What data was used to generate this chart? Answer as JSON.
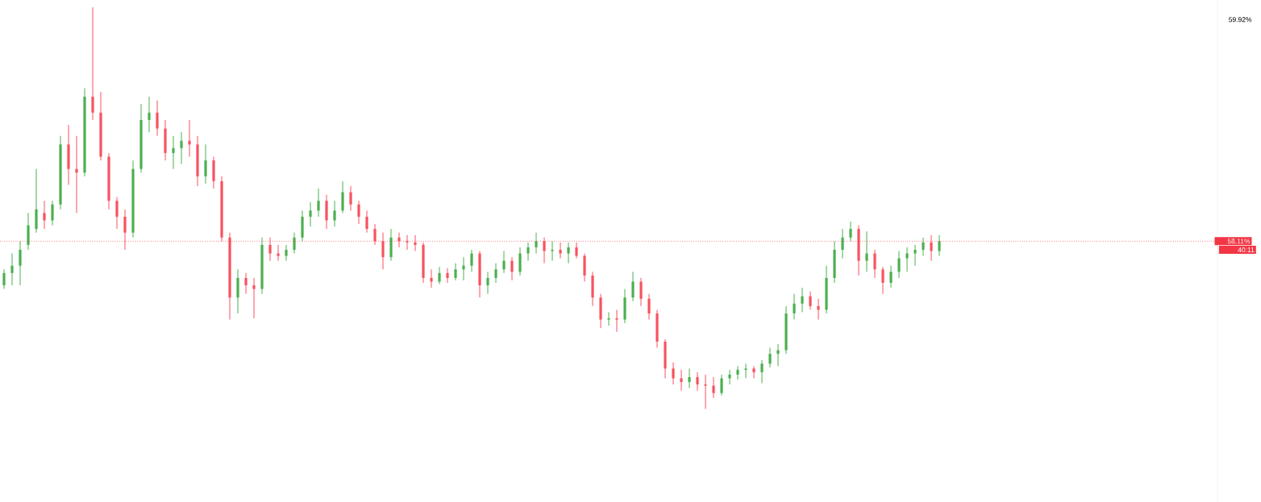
{
  "chart_data": {
    "type": "candlestick",
    "categories": [
      null,
      null,
      null,
      null,
      null,
      null,
      null,
      null,
      null,
      null,
      null,
      null,
      null,
      null,
      null,
      null,
      null,
      null,
      null,
      null,
      null,
      null,
      null,
      null,
      null,
      null,
      null,
      null,
      null,
      null,
      null,
      null,
      null,
      null,
      null,
      null,
      null,
      null,
      null,
      null,
      null,
      null,
      null,
      null,
      null,
      null,
      null,
      null,
      null,
      null,
      null,
      null,
      null,
      null,
      null,
      null,
      null,
      null,
      null,
      null,
      null,
      null,
      null,
      null,
      null,
      null,
      null,
      null,
      null,
      null,
      null,
      null,
      null,
      null,
      null,
      null,
      null,
      null,
      null,
      null,
      null,
      null,
      null,
      null,
      null,
      null,
      null,
      null,
      null,
      null,
      null,
      null,
      null,
      null,
      null,
      null,
      null,
      null,
      null,
      null,
      null,
      null,
      null,
      null,
      null,
      null,
      null,
      null,
      null,
      null,
      null,
      null,
      null,
      null,
      null,
      null,
      null,
      null,
      null,
      null,
      null,
      null,
      null,
      null,
      null,
      null,
      null,
      null,
      null,
      null,
      null,
      null,
      null,
      null,
      null,
      null,
      null,
      null,
      null,
      null,
      null,
      null,
      null,
      null,
      null,
      null,
      null,
      null,
      null,
      null,
      null
    ],
    "ohlc": [
      [
        57.75,
        57.88,
        57.72,
        57.85
      ],
      [
        57.85,
        58.01,
        57.75,
        57.91
      ],
      [
        57.91,
        58.11,
        57.75,
        58.04
      ],
      [
        58.08,
        58.34,
        58.04,
        58.24
      ],
      [
        58.21,
        58.7,
        58.18,
        58.37
      ],
      [
        58.34,
        58.44,
        58.21,
        58.28
      ],
      [
        58.28,
        58.44,
        58.24,
        58.41
      ],
      [
        58.41,
        58.97,
        58.37,
        58.9
      ],
      [
        58.9,
        59.06,
        58.57,
        58.7
      ],
      [
        58.7,
        58.97,
        58.34,
        58.67
      ],
      [
        58.67,
        59.36,
        58.64,
        59.29
      ],
      [
        59.29,
        60.02,
        59.1,
        59.16
      ],
      [
        59.16,
        59.33,
        58.77,
        58.8
      ],
      [
        58.8,
        58.83,
        58.37,
        58.44
      ],
      [
        58.44,
        58.47,
        58.21,
        58.31
      ],
      [
        58.31,
        58.37,
        58.04,
        58.18
      ],
      [
        58.18,
        58.77,
        58.14,
        58.7
      ],
      [
        58.7,
        59.23,
        58.67,
        59.1
      ],
      [
        59.1,
        59.29,
        59.0,
        59.16
      ],
      [
        59.16,
        59.26,
        58.97,
        59.03
      ],
      [
        59.03,
        59.1,
        58.77,
        58.83
      ],
      [
        58.83,
        58.97,
        58.7,
        58.87
      ],
      [
        58.87,
        59.0,
        58.74,
        58.93
      ],
      [
        58.93,
        59.1,
        58.8,
        58.9
      ],
      [
        58.9,
        58.97,
        58.56,
        58.64
      ],
      [
        58.64,
        58.9,
        58.58,
        58.77
      ],
      [
        58.77,
        58.8,
        58.54,
        58.6
      ],
      [
        58.6,
        58.64,
        58.11,
        58.14
      ],
      [
        58.14,
        58.18,
        57.47,
        57.65
      ],
      [
        57.65,
        57.88,
        57.52,
        57.81
      ],
      [
        57.81,
        57.85,
        57.68,
        57.75
      ],
      [
        57.75,
        57.81,
        57.48,
        57.72
      ],
      [
        57.72,
        58.14,
        57.68,
        58.08
      ],
      [
        58.08,
        58.14,
        57.95,
        58.01
      ],
      [
        58.01,
        58.08,
        57.95,
        57.99
      ],
      [
        57.99,
        58.08,
        57.95,
        58.04
      ],
      [
        58.04,
        58.18,
        58.01,
        58.14
      ],
      [
        58.14,
        58.36,
        58.11,
        58.31
      ],
      [
        58.31,
        58.43,
        58.23,
        58.36
      ],
      [
        58.36,
        58.54,
        58.31,
        58.44
      ],
      [
        58.44,
        58.49,
        58.21,
        58.28
      ],
      [
        58.28,
        58.44,
        58.23,
        58.36
      ],
      [
        58.36,
        58.6,
        58.34,
        58.51
      ],
      [
        58.51,
        58.56,
        58.36,
        58.41
      ],
      [
        58.41,
        58.44,
        58.25,
        58.31
      ],
      [
        58.31,
        58.36,
        58.18,
        58.21
      ],
      [
        58.21,
        58.25,
        58.08,
        58.11
      ],
      [
        58.11,
        58.18,
        57.88,
        57.98
      ],
      [
        57.98,
        58.21,
        57.95,
        58.14
      ],
      [
        58.14,
        58.18,
        58.06,
        58.11
      ],
      [
        58.11,
        58.16,
        58.04,
        58.1
      ],
      [
        58.1,
        58.16,
        58.03,
        58.08
      ],
      [
        58.08,
        58.1,
        57.77,
        57.81
      ],
      [
        57.81,
        57.88,
        57.73,
        57.78
      ],
      [
        57.78,
        57.9,
        57.76,
        57.85
      ],
      [
        57.85,
        57.89,
        57.77,
        57.81
      ],
      [
        57.81,
        57.93,
        57.79,
        57.88
      ],
      [
        57.88,
        57.98,
        57.79,
        57.91
      ],
      [
        57.91,
        58.04,
        57.86,
        58.01
      ],
      [
        58.01,
        58.03,
        57.65,
        57.75
      ],
      [
        57.75,
        57.86,
        57.68,
        57.81
      ],
      [
        57.81,
        57.93,
        57.77,
        57.88
      ],
      [
        57.88,
        58.03,
        57.85,
        57.95
      ],
      [
        57.95,
        57.98,
        57.79,
        57.86
      ],
      [
        57.86,
        58.06,
        57.83,
        58.01
      ],
      [
        58.01,
        58.1,
        57.95,
        58.06
      ],
      [
        58.06,
        58.18,
        58.01,
        58.11
      ],
      [
        58.11,
        58.14,
        57.93,
        58.03
      ],
      [
        58.03,
        58.11,
        57.95,
        58.04
      ],
      [
        58.04,
        58.1,
        57.97,
        58.01
      ],
      [
        58.01,
        58.1,
        57.93,
        58.06
      ],
      [
        58.06,
        58.1,
        57.97,
        57.99
      ],
      [
        57.99,
        58.01,
        57.78,
        57.83
      ],
      [
        57.83,
        57.86,
        57.58,
        57.65
      ],
      [
        57.65,
        57.68,
        57.4,
        57.47
      ],
      [
        57.47,
        57.53,
        57.42,
        57.48
      ],
      [
        57.48,
        57.55,
        57.37,
        57.47
      ],
      [
        57.47,
        57.72,
        57.44,
        57.65
      ],
      [
        57.65,
        57.86,
        57.62,
        57.78
      ],
      [
        57.78,
        57.81,
        57.58,
        57.64
      ],
      [
        57.64,
        57.68,
        57.47,
        57.52
      ],
      [
        57.52,
        57.55,
        57.24,
        57.29
      ],
      [
        57.29,
        57.31,
        56.99,
        57.07
      ],
      [
        57.07,
        57.12,
        56.94,
        56.99
      ],
      [
        56.99,
        57.06,
        56.89,
        56.96
      ],
      [
        56.96,
        57.07,
        56.91,
        57.0
      ],
      [
        57.0,
        57.04,
        56.89,
        56.94
      ],
      [
        56.94,
        57.02,
        56.74,
        56.93
      ],
      [
        56.93,
        57.0,
        56.83,
        56.87
      ],
      [
        56.87,
        57.02,
        56.85,
        56.99
      ],
      [
        56.99,
        57.06,
        56.94,
        57.02
      ],
      [
        57.02,
        57.09,
        56.98,
        57.06
      ],
      [
        57.06,
        57.11,
        56.99,
        57.07
      ],
      [
        57.07,
        57.09,
        56.99,
        57.04
      ],
      [
        57.04,
        57.14,
        56.95,
        57.11
      ],
      [
        57.11,
        57.24,
        57.08,
        57.19
      ],
      [
        57.19,
        57.27,
        57.09,
        57.22
      ],
      [
        57.22,
        57.58,
        57.19,
        57.52
      ],
      [
        57.52,
        57.68,
        57.47,
        57.6
      ],
      [
        57.6,
        57.73,
        57.53,
        57.66
      ],
      [
        57.66,
        57.7,
        57.55,
        57.58
      ],
      [
        57.58,
        57.64,
        57.47,
        57.55
      ],
      [
        57.55,
        57.91,
        57.52,
        57.81
      ],
      [
        57.81,
        58.11,
        57.77,
        58.04
      ],
      [
        58.04,
        58.21,
        57.97,
        58.14
      ],
      [
        58.14,
        58.27,
        58.11,
        58.21
      ],
      [
        58.21,
        58.24,
        57.83,
        57.95
      ],
      [
        57.95,
        58.19,
        57.86,
        58.01
      ],
      [
        58.01,
        58.04,
        57.81,
        57.88
      ],
      [
        57.88,
        57.9,
        57.68,
        57.77
      ],
      [
        57.77,
        57.91,
        57.73,
        57.86
      ],
      [
        57.86,
        58.03,
        57.81,
        57.97
      ],
      [
        57.97,
        58.06,
        57.86,
        58.01
      ],
      [
        58.01,
        58.08,
        57.91,
        58.04
      ],
      [
        58.04,
        58.14,
        57.99,
        58.1
      ],
      [
        58.1,
        58.16,
        57.95,
        58.03
      ],
      [
        58.03,
        58.16,
        57.99,
        58.11
      ],
      null,
      null,
      null,
      null,
      null,
      null,
      null,
      null,
      null,
      null,
      null,
      null,
      null,
      null,
      null,
      null,
      null,
      null,
      null,
      null,
      null,
      null,
      null,
      null,
      null,
      null,
      null,
      null,
      null,
      null,
      null,
      null,
      null,
      null
    ],
    "colors": [
      "#4caf50",
      "#4caf50",
      "#4caf50",
      "#4caf50",
      "#4caf50",
      "#f7525f",
      "#4caf50",
      "#4caf50",
      "#f7525f",
      "#f7525f",
      "#4caf50",
      "#f7525f",
      "#f7525f",
      "#f7525f",
      "#f7525f",
      "#f7525f",
      "#4caf50",
      "#4caf50",
      "#4caf50",
      "#f7525f",
      "#f7525f",
      "#4caf50",
      "#4caf50",
      "#f7525f",
      "#f7525f",
      "#4caf50",
      "#f7525f",
      "#f7525f",
      "#f7525f",
      "#4caf50",
      "#f7525f",
      "#f7525f",
      "#4caf50",
      "#f7525f",
      "#f7525f",
      "#4caf50",
      "#4caf50",
      "#4caf50",
      "#4caf50",
      "#4caf50",
      "#f7525f",
      "#4caf50",
      "#4caf50",
      "#f7525f",
      "#f7525f",
      "#f7525f",
      "#f7525f",
      "#f7525f",
      "#4caf50",
      "#f7525f",
      "#f7525f",
      "#f7525f",
      "#f7525f",
      "#f7525f",
      "#4caf50",
      "#f7525f",
      "#4caf50",
      "#4caf50",
      "#4caf50",
      "#f7525f",
      "#4caf50",
      "#4caf50",
      "#4caf50",
      "#f7525f",
      "#4caf50",
      "#4caf50",
      "#4caf50",
      "#f7525f",
      "#4caf50",
      "#f7525f",
      "#4caf50",
      "#f7525f",
      "#f7525f",
      "#f7525f",
      "#f7525f",
      "#4caf50",
      "#f7525f",
      "#4caf50",
      "#4caf50",
      "#f7525f",
      "#f7525f",
      "#f7525f",
      "#f7525f",
      "#f7525f",
      "#f7525f",
      "#4caf50",
      "#f7525f",
      "#f7525f",
      "#f7525f",
      "#4caf50",
      "#4caf50",
      "#4caf50",
      "#4caf50",
      "#f7525f",
      "#4caf50",
      "#4caf50",
      "#4caf50",
      "#4caf50",
      "#4caf50",
      "#4caf50",
      "#f7525f",
      "#f7525f",
      "#4caf50",
      "#4caf50",
      "#4caf50",
      "#4caf50",
      "#f7525f",
      "#4caf50",
      "#f7525f",
      "#f7525f",
      "#4caf50",
      "#4caf50",
      "#4caf50",
      "#4caf50",
      "#4caf50",
      "#f7525f",
      "#4caf50",
      null,
      null,
      null,
      null,
      null,
      null,
      null,
      null,
      null,
      null,
      null,
      null,
      null,
      null,
      null,
      null,
      null,
      null,
      null,
      null,
      null,
      null,
      null,
      null,
      null,
      null,
      null,
      null,
      null,
      null,
      null,
      null,
      null,
      null
    ],
    "ylim": [
      55.98,
      60.08
    ],
    "yticks": [
      {
        "value": 58.11,
        "label": "58.11%"
      },
      {
        "value": 59.92,
        "label": "59.92%"
      }
    ],
    "ref_lines": [
      {
        "axis": "y",
        "value": 58.11,
        "color": "#f23645",
        "line_style": "dotted"
      }
    ],
    "annotations": [
      "40:11"
    ]
  }
}
